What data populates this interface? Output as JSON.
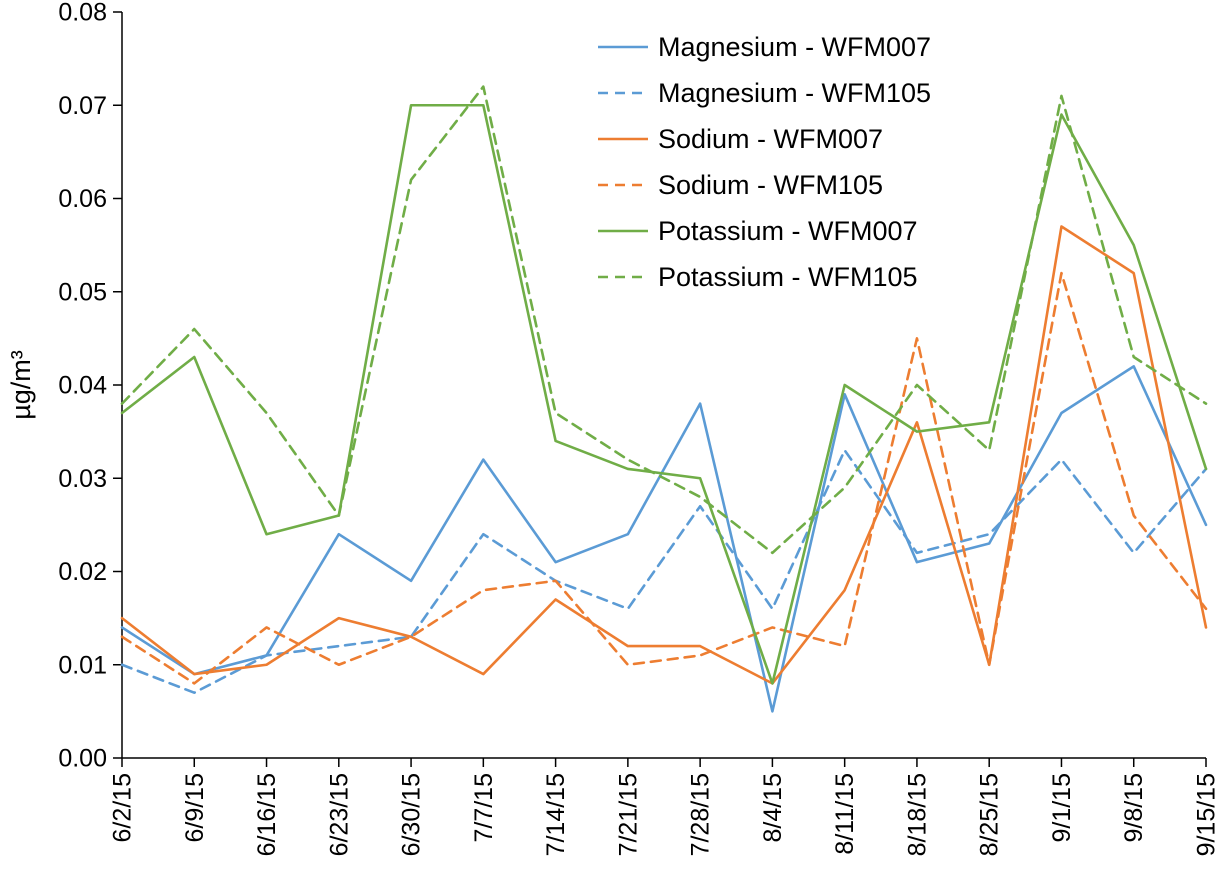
{
  "figure": {
    "background": "#ffffff",
    "axis_color": "#000000",
    "text_color": "#000000"
  },
  "chart_data": {
    "type": "line",
    "title": "",
    "xlabel": "",
    "ylabel": "µg/m³",
    "ylim": [
      0,
      0.08
    ],
    "ytick_step": 0.01,
    "ytick_decimals": 2,
    "grid": false,
    "legend_position": "top-right-inside",
    "categories": [
      "6/2/15",
      "6/9/15",
      "6/16/15",
      "6/23/15",
      "6/30/15",
      "7/7/15",
      "7/14/15",
      "7/21/15",
      "7/28/15",
      "8/4/15",
      "8/11/15",
      "8/18/15",
      "8/25/15",
      "9/1/15",
      "9/8/15",
      "9/15/15"
    ],
    "series": [
      {
        "name": "Magnesium - WFM007",
        "color": "#5B9BD5",
        "dash": "solid",
        "values": [
          0.014,
          0.009,
          0.011,
          0.024,
          0.019,
          0.032,
          0.021,
          0.024,
          0.038,
          0.005,
          0.039,
          0.021,
          0.023,
          0.037,
          0.042,
          0.025
        ]
      },
      {
        "name": "Magnesium - WFM105",
        "color": "#5B9BD5",
        "dash": "dashed",
        "values": [
          0.01,
          0.007,
          0.011,
          0.012,
          0.013,
          0.024,
          0.019,
          0.016,
          0.027,
          0.016,
          0.033,
          0.022,
          0.024,
          0.032,
          0.022,
          0.031
        ]
      },
      {
        "name": "Sodium - WFM007",
        "color": "#ED7D31",
        "dash": "solid",
        "values": [
          0.015,
          0.009,
          0.01,
          0.015,
          0.013,
          0.009,
          0.017,
          0.012,
          0.012,
          0.008,
          0.018,
          0.036,
          0.01,
          0.057,
          0.052,
          0.014
        ]
      },
      {
        "name": "Sodium - WFM105",
        "color": "#ED7D31",
        "dash": "dashed",
        "values": [
          0.013,
          0.008,
          0.014,
          0.01,
          0.013,
          0.018,
          0.019,
          0.01,
          0.011,
          0.014,
          0.012,
          0.045,
          0.01,
          0.052,
          0.026,
          0.016
        ]
      },
      {
        "name": "Potassium - WFM007",
        "color": "#70AD47",
        "dash": "solid",
        "values": [
          0.037,
          0.043,
          0.024,
          0.026,
          0.07,
          0.07,
          0.034,
          0.031,
          0.03,
          0.008,
          0.04,
          0.035,
          0.036,
          0.069,
          0.055,
          0.031
        ]
      },
      {
        "name": "Potassium - WFM105",
        "color": "#70AD47",
        "dash": "dashed",
        "values": [
          0.038,
          0.046,
          0.037,
          0.026,
          0.062,
          0.072,
          0.037,
          0.032,
          0.028,
          0.022,
          0.029,
          0.04,
          0.033,
          0.071,
          0.043,
          0.038
        ]
      }
    ]
  }
}
